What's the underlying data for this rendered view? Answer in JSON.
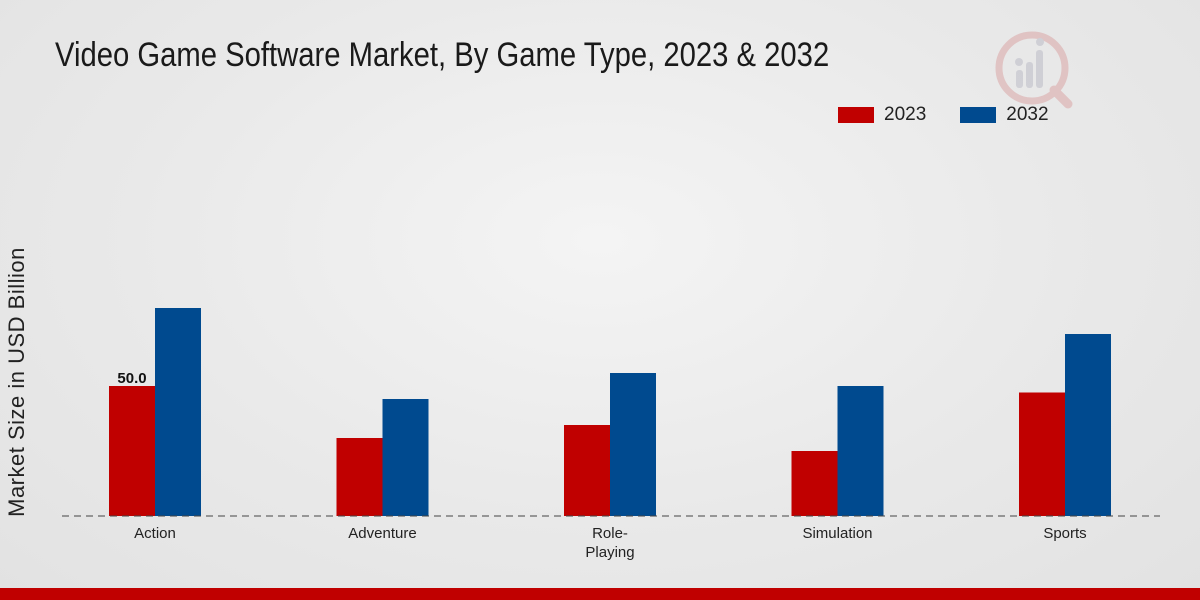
{
  "colors": {
    "series_2023": "#c00000",
    "series_2032": "#004a8f",
    "accent_bar": "#c00000"
  },
  "legend": {
    "items": [
      {
        "label": "2023"
      },
      {
        "label": "2032"
      }
    ]
  },
  "chart_data": {
    "type": "bar",
    "title": "Video Game Software Market, By Game Type, 2023 & 2032",
    "xlabel": "",
    "ylabel": "Market Size in USD Billion",
    "categories": [
      "Action",
      "Adventure",
      "Role-\nPlaying",
      "Simulation",
      "Sports"
    ],
    "series": [
      {
        "name": "2023",
        "values": [
          50.0,
          30.0,
          35.0,
          25.0,
          47.5
        ]
      },
      {
        "name": "2032",
        "values": [
          80.0,
          45.0,
          55.0,
          50.0,
          70.0
        ]
      }
    ],
    "data_labels": [
      {
        "series": 0,
        "index": 0,
        "text": "50.0"
      }
    ],
    "ylim": [
      0,
      90
    ],
    "grid": false,
    "legend_position": "top-right"
  }
}
